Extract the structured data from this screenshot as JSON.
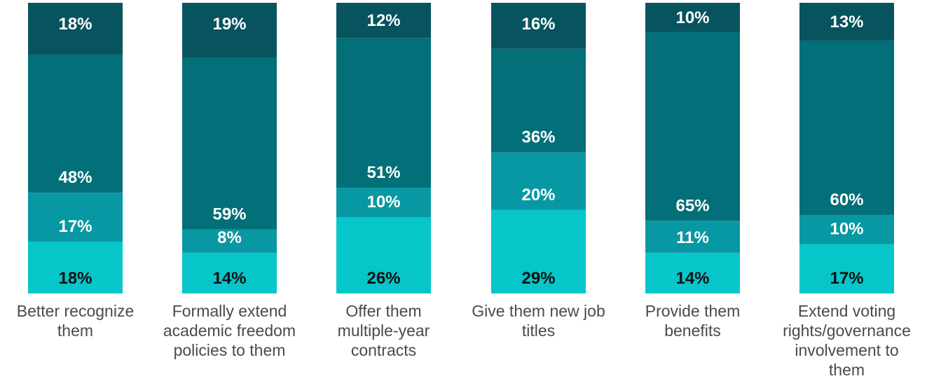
{
  "chart_data": {
    "type": "bar",
    "stacked": true,
    "normalized_percent": true,
    "grid": false,
    "legend": "none",
    "categories": [
      "Better recognize them",
      "Formally extend academic freedom policies to them",
      "Offer them multiple-year contracts",
      "Give them new job titles",
      "Provide them benefits",
      "Extend voting rights/governance involvement to them"
    ],
    "category_lines": [
      [
        "Better recognize",
        "them"
      ],
      [
        "Formally extend",
        "academic freedom",
        "policies to them"
      ],
      [
        "Offer them",
        "multiple-year",
        "contracts"
      ],
      [
        "Give them new job",
        "titles"
      ],
      [
        "Provide them",
        "benefits"
      ],
      [
        "Extend voting",
        "rights/governance",
        "involvement to",
        "them"
      ]
    ],
    "series": [
      {
        "values": [
          18,
          14,
          26,
          29,
          14,
          17
        ],
        "color": "#06c6c9",
        "label_color": "#111111"
      },
      {
        "values": [
          17,
          8,
          10,
          20,
          11,
          10
        ],
        "color": "#0898a3",
        "label_color": "#ffffff"
      },
      {
        "values": [
          48,
          59,
          51,
          36,
          65,
          60
        ],
        "color": "#036f78",
        "label_color": "#ffffff"
      },
      {
        "values": [
          18,
          19,
          12,
          16,
          10,
          13
        ],
        "color": "#07545f",
        "label_color": "#ffffff"
      }
    ],
    "value_labels": [
      [
        "18%",
        "14%",
        "26%",
        "29%",
        "14%",
        "17%"
      ],
      [
        "17%",
        "8%",
        "10%",
        "20%",
        "11%",
        "10%"
      ],
      [
        "48%",
        "59%",
        "51%",
        "36%",
        "65%",
        "60%"
      ],
      [
        "18%",
        "19%",
        "12%",
        "16%",
        "10%",
        "13%"
      ]
    ],
    "ylim": [
      0,
      100
    ]
  }
}
